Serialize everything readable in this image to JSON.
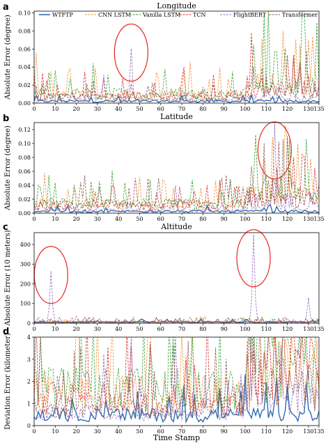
{
  "legend": [
    {
      "name": "WTFTP",
      "color": "#2e6db4",
      "dash": "solid"
    },
    {
      "name": "CNN LSTM",
      "color": "#f28e2b",
      "dash": "dash"
    },
    {
      "name": "Vanilla LSTM",
      "color": "#2ca02c",
      "dash": "dash"
    },
    {
      "name": "TCN",
      "color": "#d62728",
      "dash": "dash"
    },
    {
      "name": "FlightBERT",
      "color": "#9467bd",
      "dash": "dash"
    },
    {
      "name": "Transformer",
      "color": "#8c564b",
      "dash": "dash"
    }
  ],
  "x_label": "Time Stamp",
  "highlight_color": "#e8231f",
  "chart_data": [
    {
      "type": "line",
      "panel": "a",
      "title": "Longitude",
      "ylabel": "Absolute Error (degree)",
      "xlim": [
        0,
        135
      ],
      "ylim": [
        0,
        0.102
      ],
      "xticks": [
        "0",
        "10",
        "20",
        "30",
        "40",
        "50",
        "60",
        "70",
        "80",
        "90",
        "100",
        "110",
        "120",
        "130",
        "135"
      ],
      "yticks": [
        "0.00",
        "0.02",
        "0.04",
        "0.06",
        "0.08",
        "0.10"
      ],
      "peaks": [
        {
          "series": "FlightBERT",
          "x": 46,
          "y": 0.06
        },
        {
          "series": "FlightBERT",
          "x": 33,
          "y": 0.031
        },
        {
          "series": "Vanilla LSTM",
          "x": 127,
          "y": 0.1
        },
        {
          "series": "CNN LSTM",
          "x": 1,
          "y": 0.055
        },
        {
          "series": "CNN LSTM",
          "x": 124,
          "y": 0.07
        },
        {
          "series": "CNN LSTM",
          "x": 130,
          "y": 0.069
        },
        {
          "series": "Vanilla LSTM",
          "x": 114,
          "y": 0.057
        },
        {
          "series": "Vanilla LSTM",
          "x": 119,
          "y": 0.06
        },
        {
          "series": "TCN",
          "x": 126,
          "y": 0.04
        }
      ],
      "highlights": [
        {
          "x": 46,
          "y": 0.056
        }
      ]
    },
    {
      "type": "line",
      "panel": "b",
      "title": "Latitude",
      "ylabel": "Absolute Error (degree)",
      "xlim": [
        0,
        135
      ],
      "ylim": [
        0,
        0.13
      ],
      "xticks": [
        "0",
        "10",
        "20",
        "30",
        "40",
        "50",
        "60",
        "70",
        "80",
        "90",
        "100",
        "110",
        "120",
        "130",
        "135"
      ],
      "yticks": [
        "0.00",
        "0.02",
        "0.04",
        "0.06",
        "0.08",
        "0.10",
        "0.12"
      ],
      "peaks": [
        {
          "series": "FlightBERT",
          "x": 114,
          "y": 0.128
        },
        {
          "series": "FlightBERT",
          "x": 67,
          "y": 0.039
        },
        {
          "series": "Vanilla LSTM",
          "x": 3,
          "y": 0.036
        },
        {
          "series": "Vanilla LSTM",
          "x": 130,
          "y": 0.045
        },
        {
          "series": "Vanilla LSTM",
          "x": 113,
          "y": 0.05
        },
        {
          "series": "TCN",
          "x": 113,
          "y": 0.048
        },
        {
          "series": "CNN LSTM",
          "x": 130,
          "y": 0.03
        }
      ],
      "highlights": [
        {
          "x": 114,
          "y": 0.09
        }
      ]
    },
    {
      "type": "line",
      "panel": "c",
      "title": "Altitude",
      "ylabel": "Absolute Error (10 meters)",
      "xlim": [
        0,
        135
      ],
      "ylim": [
        0,
        460
      ],
      "xticks": [
        "0",
        "10",
        "20",
        "30",
        "40",
        "50",
        "60",
        "70",
        "80",
        "90",
        "100",
        "110",
        "120",
        "130",
        "135"
      ],
      "yticks": [
        "0",
        "100",
        "200",
        "300",
        "400"
      ],
      "peaks": [
        {
          "series": "FlightBERT",
          "x": 8,
          "y": 262
        },
        {
          "series": "FlightBERT",
          "x": 104,
          "y": 448
        },
        {
          "series": "FlightBERT",
          "x": 130,
          "y": 128
        },
        {
          "series": "FlightBERT",
          "x": 20,
          "y": 35
        },
        {
          "series": "FlightBERT",
          "x": 119,
          "y": 30
        }
      ],
      "highlights": [
        {
          "x": 8,
          "y": 245
        },
        {
          "x": 104,
          "y": 330
        }
      ]
    },
    {
      "type": "line",
      "panel": "d",
      "title": "",
      "ylabel": "Deviation Error (kilometer)",
      "xlabel": "Time Stamp",
      "xlim": [
        0,
        135
      ],
      "ylim": [
        0,
        4
      ],
      "xticks": [
        "0",
        "10",
        "20",
        "30",
        "40",
        "50",
        "60",
        "70",
        "80",
        "90",
        "100",
        "110",
        "120",
        "130",
        "135"
      ],
      "yticks": [
        "0",
        "1",
        "2",
        "3",
        "4"
      ],
      "peaks": [
        {
          "series": "FlightBERT",
          "x": 46,
          "y": 4
        },
        {
          "series": "FlightBERT",
          "x": 67,
          "y": 4
        },
        {
          "series": "FlightBERT",
          "x": 33,
          "y": 3.2
        },
        {
          "series": "Vanilla LSTM",
          "x": 3,
          "y": 4
        },
        {
          "series": "Vanilla LSTM",
          "x": 120,
          "y": 4
        },
        {
          "series": "CNN LSTM",
          "x": 122,
          "y": 4
        },
        {
          "series": "TCN",
          "x": 104,
          "y": 4
        },
        {
          "series": "WTFTP",
          "x": 76,
          "y": 1.4
        }
      ],
      "highlights": []
    }
  ]
}
